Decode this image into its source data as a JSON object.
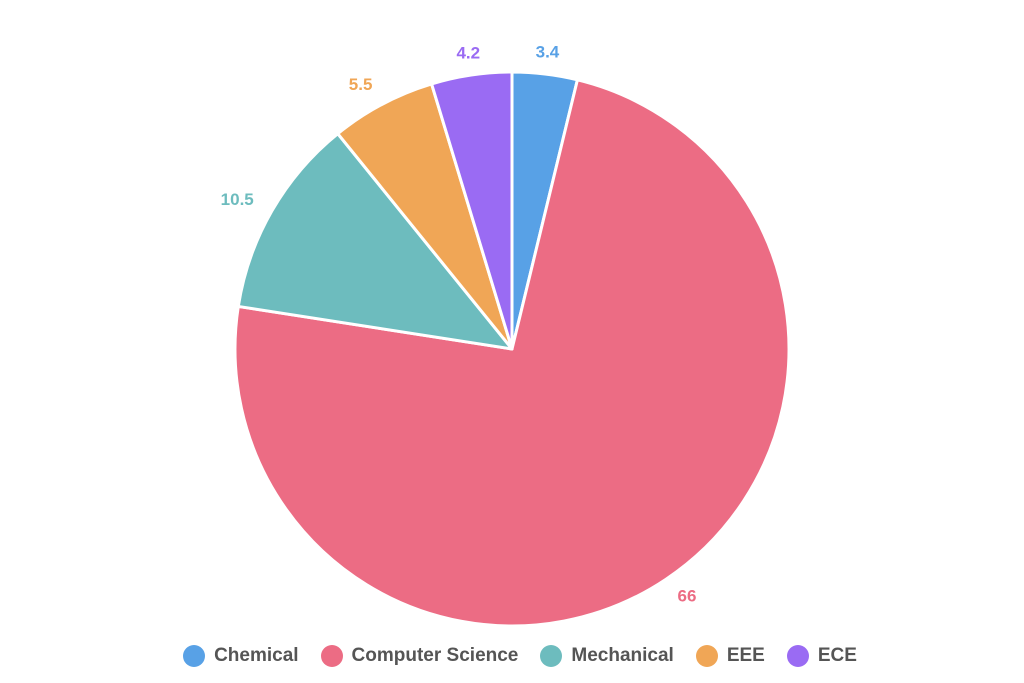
{
  "chart_data": {
    "type": "pie",
    "categories": [
      "Chemical",
      "Computer Science",
      "Mechanical",
      "EEE",
      "ECE"
    ],
    "values": [
      3.4,
      66,
      10.5,
      5.5,
      4.2
    ],
    "data_labels": [
      "3.4",
      "66",
      "10.5",
      "5.5",
      "4.2"
    ],
    "colors": [
      "#58a1e6",
      "#ec6c84",
      "#6dbcbe",
      "#f0a656",
      "#9a6bf3"
    ],
    "start_angle": "top (12 o'clock), clockwise",
    "legend_position": "bottom-center"
  }
}
